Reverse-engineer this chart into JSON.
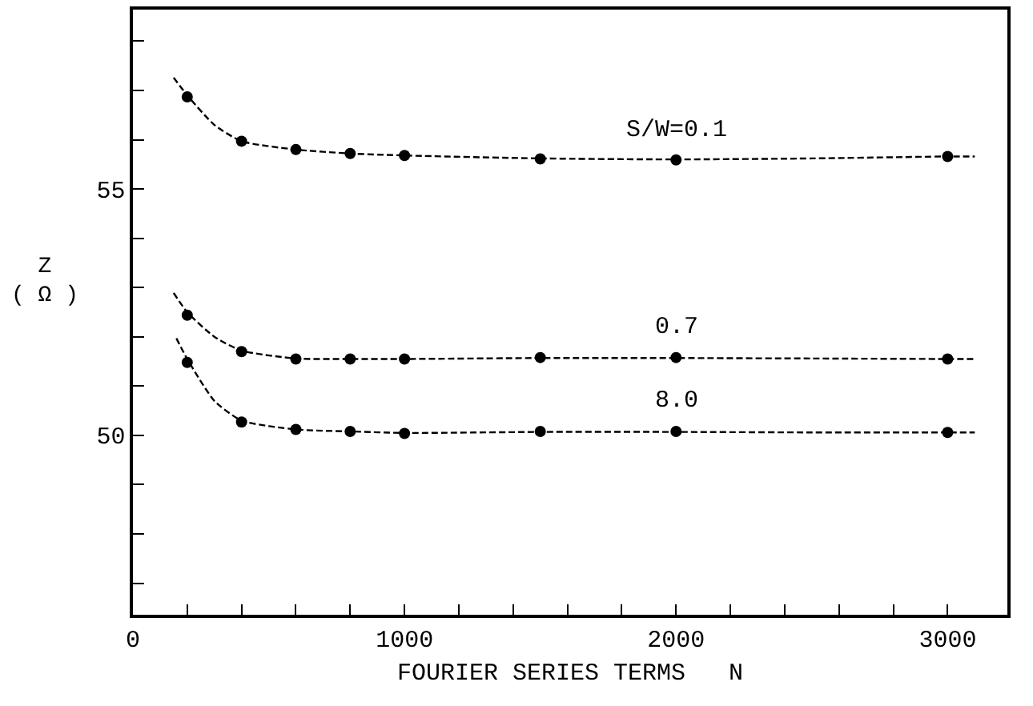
{
  "chart_data": {
    "type": "scatter",
    "xlabel": "FOURIER SERIES TERMS   N",
    "ylabel": "Z\n( Ω )",
    "xlim": [
      0,
      3220
    ],
    "ylim": [
      46.36,
      58.64
    ],
    "xticks": [
      0,
      {
        "value": 200,
        "label": null
      },
      {
        "value": 400,
        "label": null
      },
      {
        "value": 600,
        "label": null
      },
      {
        "value": 800,
        "label": null
      },
      1000,
      {
        "value": 1200,
        "label": null
      },
      {
        "value": 1400,
        "label": null
      },
      {
        "value": 1600,
        "label": null
      },
      {
        "value": 1800,
        "label": null
      },
      2000,
      {
        "value": 2200,
        "label": null
      },
      {
        "value": 2400,
        "label": null
      },
      {
        "value": 2600,
        "label": null
      },
      {
        "value": 2800,
        "label": null
      },
      3000
    ],
    "yticks": [
      {
        "value": 47,
        "label": null
      },
      {
        "value": 48,
        "label": null
      },
      {
        "value": 49,
        "label": null
      },
      50,
      {
        "value": 51,
        "label": null
      },
      {
        "value": 52,
        "label": null
      },
      {
        "value": 53,
        "label": null
      },
      {
        "value": 54,
        "label": null
      },
      55,
      {
        "value": 56,
        "label": null
      },
      {
        "value": 57,
        "label": null
      },
      {
        "value": 58,
        "label": null
      }
    ],
    "grid": false,
    "legend": false,
    "marker": "circle",
    "series": [
      {
        "type": "line",
        "marker": "none",
        "line_style": "dashed",
        "color": "#000000",
        "x": [
          150,
          200,
          300,
          400,
          600,
          800,
          1000,
          1500,
          2000,
          2500,
          3000,
          3100
        ],
        "values": [
          57.26,
          56.9,
          56.3,
          55.97,
          55.8,
          55.72,
          55.68,
          55.62,
          55.6,
          55.62,
          55.66,
          55.66
        ]
      },
      {
        "type": "line",
        "marker": "none",
        "line_style": "dashed",
        "color": "#000000",
        "x": [
          150,
          200,
          300,
          400,
          600,
          800,
          1000,
          1500,
          2000,
          2500,
          3000,
          3100
        ],
        "values": [
          52.89,
          52.5,
          52.0,
          51.72,
          51.56,
          51.55,
          51.55,
          51.57,
          51.57,
          51.56,
          51.55,
          51.55
        ]
      },
      {
        "type": "line",
        "marker": "none",
        "line_style": "dashed",
        "color": "#000000",
        "x": [
          160,
          200,
          300,
          400,
          600,
          800,
          1000,
          1500,
          2000,
          2500,
          3000,
          3100
        ],
        "values": [
          51.97,
          51.55,
          50.7,
          50.3,
          50.12,
          50.08,
          50.05,
          50.07,
          50.07,
          50.06,
          50.06,
          50.06
        ]
      },
      {
        "name": "S/W=0.1",
        "color": "#000000",
        "x": [
          200,
          400,
          600,
          800,
          1000,
          1500,
          2000,
          3000
        ],
        "values": [
          56.87,
          55.97,
          55.8,
          55.72,
          55.68,
          55.61,
          55.59,
          55.66
        ]
      },
      {
        "name": "0.7",
        "color": "#000000",
        "x": [
          200,
          400,
          600,
          800,
          1000,
          1500,
          2000,
          3000
        ],
        "values": [
          52.44,
          51.7,
          51.55,
          51.55,
          51.55,
          51.58,
          51.58,
          51.55
        ]
      },
      {
        "name": "8.0",
        "color": "#000000",
        "x": [
          200,
          400,
          600,
          800,
          1000,
          1500,
          2000,
          3000
        ],
        "values": [
          51.48,
          50.27,
          50.12,
          50.08,
          50.04,
          50.08,
          50.08,
          50.06
        ]
      }
    ]
  }
}
